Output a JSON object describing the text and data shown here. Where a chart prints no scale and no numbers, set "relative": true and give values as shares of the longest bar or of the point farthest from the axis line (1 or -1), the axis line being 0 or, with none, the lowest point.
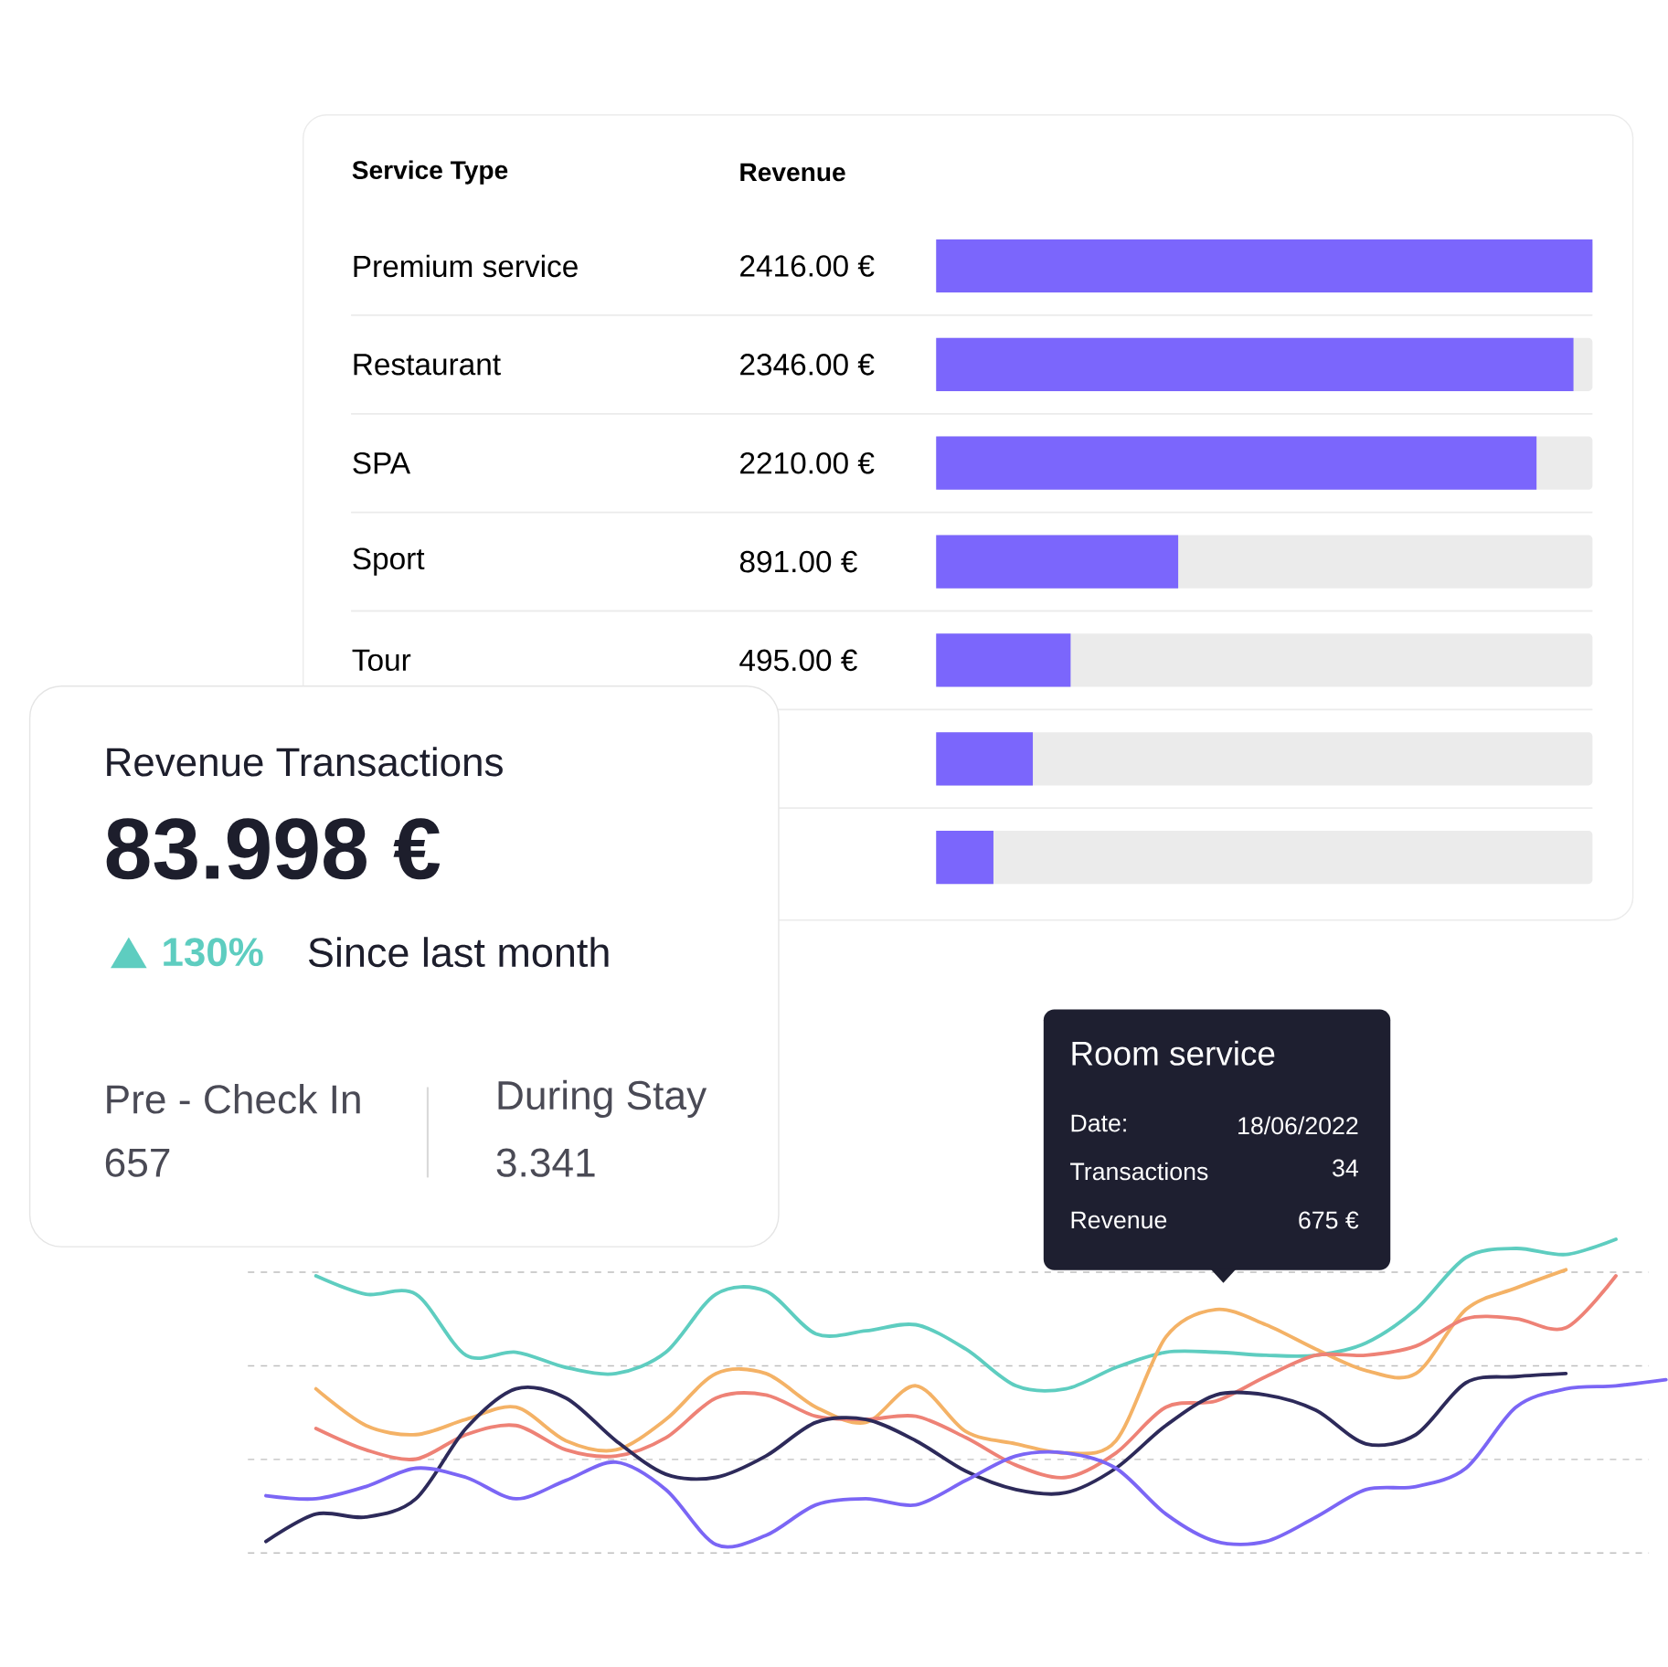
{
  "chart_data": [
    {
      "type": "bar",
      "orientation": "horizontal",
      "ylabel": "Service Type",
      "xlabel": "Revenue",
      "categories": [
        "Premium service",
        "Restaurant",
        "SPA",
        "Sport",
        "Tour",
        null,
        null
      ],
      "values": [
        2416,
        2346,
        2210,
        891,
        495,
        356,
        211
      ],
      "value_labels": [
        "2416.00 €",
        "2346.00 €",
        "2210.00 €",
        "891.00 €",
        "495.00 €",
        null,
        null
      ],
      "color": "#7b66fc",
      "xlim": [
        0,
        2416
      ]
    },
    {
      "type": "other",
      "title": "Revenue Transactions",
      "annotations": [
        "83.998 €",
        "130%",
        "Since last month",
        "Pre - Check In",
        "657",
        "During Stay",
        "3.341"
      ]
    },
    {
      "type": "line",
      "relative": true,
      "grid": true,
      "categories": [
        null,
        null,
        null,
        null,
        null,
        null,
        null,
        null,
        null,
        null,
        null,
        null,
        null,
        null,
        null,
        null,
        null,
        null,
        null,
        null,
        null,
        null,
        null,
        null,
        null,
        null,
        null,
        null,
        null
      ],
      "series": [
        {
          "color": "#5ecdc0",
          "values": [
            null,
            0.88,
            0.82,
            0.82,
            0.62,
            0.63,
            0.58,
            0.56,
            0.63,
            0.82,
            0.83,
            0.69,
            0.7,
            0.72,
            0.64,
            0.52,
            0.51,
            0.58,
            0.63,
            0.63,
            0.62,
            0.62,
            0.66,
            0.77,
            0.94,
            0.97,
            0.95,
            1.0,
            null
          ]
        },
        {
          "color": "#f4b266",
          "values": [
            null,
            0.51,
            0.39,
            0.36,
            0.41,
            0.45,
            0.34,
            0.31,
            0.41,
            0.56,
            0.56,
            0.45,
            0.4,
            0.52,
            0.37,
            0.33,
            0.3,
            0.34,
            0.68,
            0.77,
            0.72,
            0.64,
            0.57,
            0.56,
            0.77,
            0.84,
            0.9,
            null,
            null
          ]
        },
        {
          "color": "#ee8276",
          "values": [
            null,
            0.38,
            0.31,
            0.28,
            0.36,
            0.39,
            0.31,
            0.29,
            0.35,
            0.48,
            0.49,
            0.42,
            0.41,
            0.42,
            0.35,
            0.26,
            0.22,
            0.3,
            0.45,
            0.47,
            0.55,
            0.62,
            0.62,
            0.65,
            0.74,
            0.74,
            0.71,
            0.88,
            null
          ]
        },
        {
          "color": "#2d2a5a",
          "values": [
            0.01,
            0.1,
            0.09,
            0.15,
            0.38,
            0.51,
            0.48,
            0.34,
            0.23,
            0.22,
            0.29,
            0.4,
            0.41,
            0.34,
            0.24,
            0.18,
            0.17,
            0.25,
            0.39,
            0.49,
            0.49,
            0.44,
            0.33,
            0.36,
            0.53,
            0.55,
            0.56,
            null,
            null
          ]
        },
        {
          "color": "#7b66f5",
          "values": [
            0.16,
            0.15,
            0.19,
            0.25,
            0.22,
            0.15,
            0.21,
            0.27,
            0.18,
            0,
            0.03,
            0.13,
            0.15,
            0.13,
            0.21,
            0.29,
            0.3,
            0.25,
            0.1,
            0.01,
            0.01,
            0.09,
            0.18,
            0.19,
            0.25,
            0.45,
            0.51,
            0.52,
            0.54
          ]
        }
      ],
      "annotations": [
        "Room service",
        "Date:",
        "18/06/2022",
        "Transactions",
        "34",
        "Revenue",
        "675 €"
      ]
    }
  ]
}
